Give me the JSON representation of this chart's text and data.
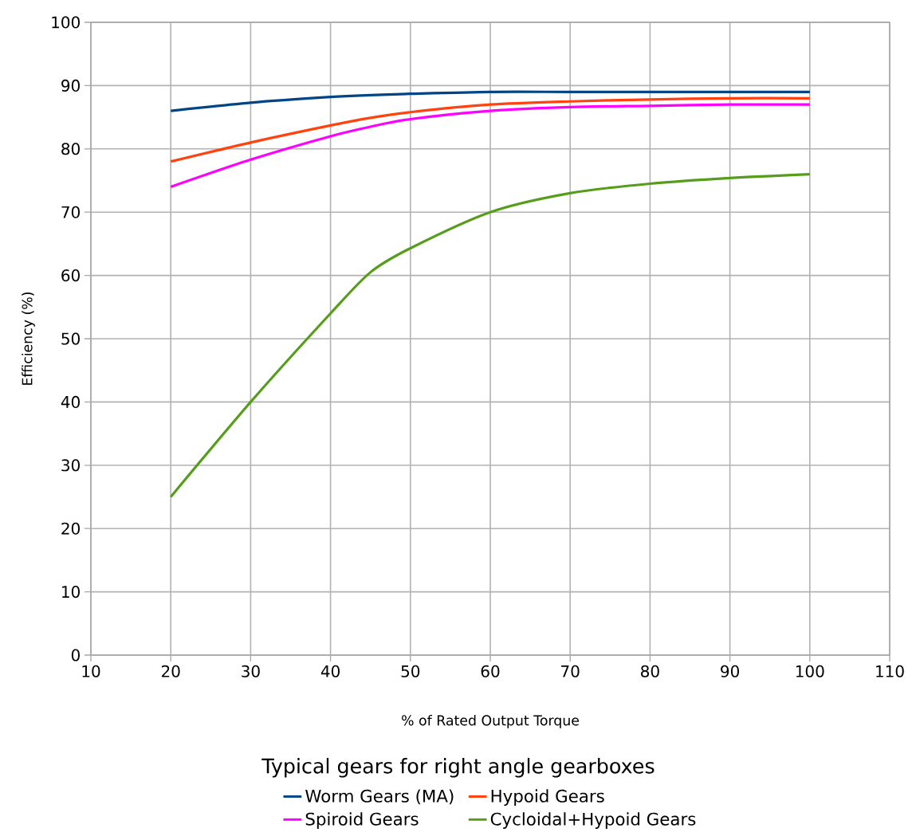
{
  "chart_data": {
    "type": "line",
    "xlabel": "% of Rated Output Torque",
    "ylabel": "Efficiency (%)",
    "legend_title": "Typical gears for right angle gearboxes",
    "x": [
      20,
      30,
      40,
      45,
      50,
      60,
      70,
      80,
      90,
      100
    ],
    "series": [
      {
        "name": "Worm Gears (MA)",
        "color": "#004586",
        "values": [
          86,
          87.3,
          88.2,
          88.5,
          88.7,
          89,
          89,
          89,
          89,
          89
        ]
      },
      {
        "name": "Hypoid Gears",
        "color": "#ff420e",
        "values": [
          78,
          81,
          83.7,
          84.9,
          85.8,
          87,
          87.5,
          87.8,
          88,
          88
        ]
      },
      {
        "name": "Spiroid Gears",
        "color": "#ff00ff",
        "values": [
          74,
          78.3,
          82,
          83.5,
          84.7,
          86,
          86.6,
          86.8,
          87,
          87
        ]
      },
      {
        "name": "Cycloidal+Hypoid Gears",
        "color": "#579d1c",
        "values": [
          25,
          40,
          54,
          60.5,
          64.3,
          70,
          73,
          74.5,
          75.4,
          76
        ]
      }
    ],
    "xlim": [
      10,
      110
    ],
    "ylim": [
      0,
      100
    ],
    "xticks": [
      10,
      20,
      30,
      40,
      50,
      60,
      70,
      80,
      90,
      100,
      110
    ],
    "yticks": [
      0,
      10,
      20,
      30,
      40,
      50,
      60,
      70,
      80,
      90,
      100
    ],
    "grid": true,
    "legend": "bottom",
    "marker": "none",
    "line_style": "solid"
  }
}
